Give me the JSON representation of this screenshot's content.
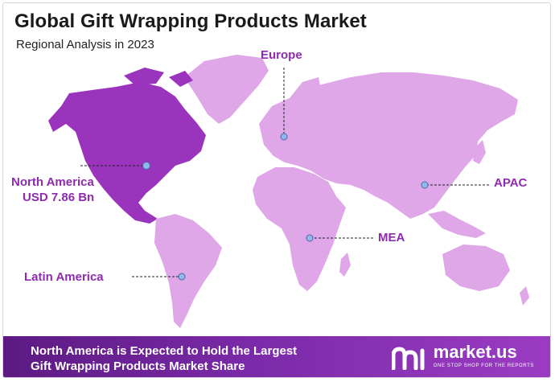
{
  "header": {
    "title": "Global Gift Wrapping Products Market",
    "subtitle": "Regional Analysis in 2023"
  },
  "colors": {
    "highlight": "#8e2bb0",
    "land": "#dfa6e8",
    "north_america": "#9a34bd",
    "marker": "#8fb8ec",
    "footer_start": "#5d1a82",
    "footer_end": "#9b3cc3"
  },
  "regions": {
    "europe": "Europe",
    "north_america": "North America",
    "north_america_value": "USD 7.86 Bn",
    "apac": "APAC",
    "mea": "MEA",
    "latin_america": "Latin America"
  },
  "footer": {
    "line1": "North America is Expected to Hold the Largest",
    "line2": "Gift Wrapping Products Market Share"
  },
  "brand": {
    "name": "market.us",
    "tagline": "ONE STOP SHOP FOR THE REPORTS"
  }
}
